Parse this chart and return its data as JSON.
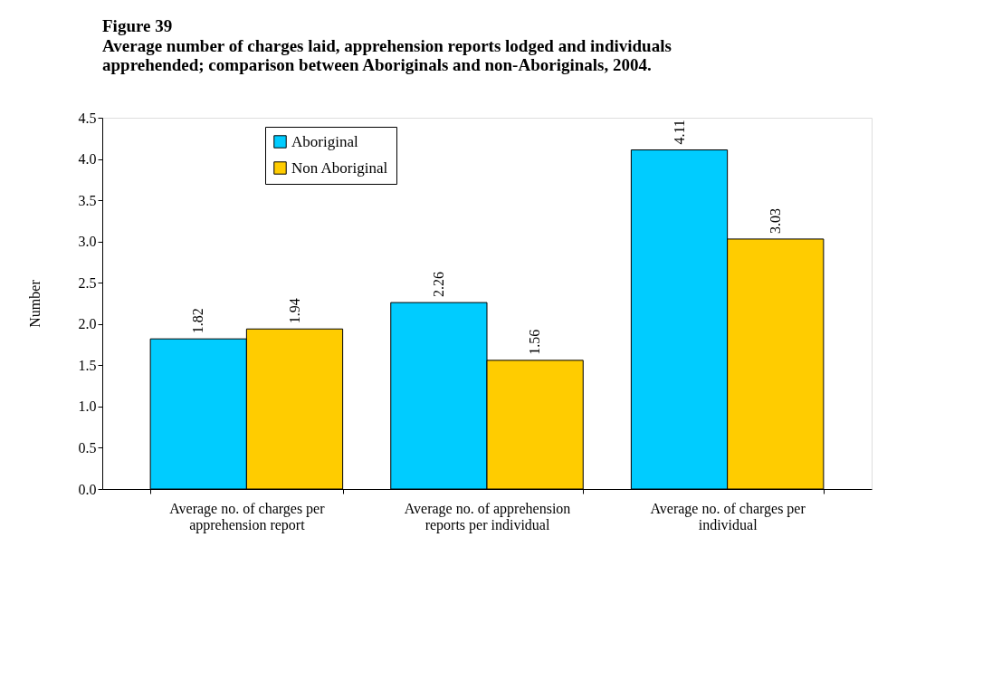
{
  "chart_data": {
    "type": "bar",
    "title": "Figure 39",
    "subtitle": "Average number of charges laid, apprehension reports lodged and individuals apprehended; comparison between Aboriginals and non-Aboriginals, 2004.",
    "ylabel": "Number",
    "categories": [
      "Average no. of charges per apprehension report",
      "Average no. of apprehension reports per individual",
      "Average no. of charges per individual"
    ],
    "series": [
      {
        "name": "Aboriginal",
        "color": "#00ccff",
        "values": [
          1.82,
          2.26,
          4.11
        ]
      },
      {
        "name": "Non Aboriginal",
        "color": "#ffcc00",
        "values": [
          1.94,
          1.56,
          3.03
        ]
      }
    ],
    "ylim": [
      0,
      4.5
    ],
    "yticks": [
      {
        "value": 0,
        "label": "0.0"
      },
      {
        "value": 0.5,
        "label": "0.5"
      },
      {
        "value": 1,
        "label": "1.0"
      },
      {
        "value": 1.5,
        "label": "1.5"
      },
      {
        "value": 2,
        "label": "2.0"
      },
      {
        "value": 2.5,
        "label": "2.5"
      },
      {
        "value": 3,
        "label": "3.0"
      },
      {
        "value": 3.5,
        "label": "3.5"
      },
      {
        "value": 4,
        "label": "4.0"
      },
      {
        "value": 4.5,
        "label": "4.5"
      }
    ],
    "data_labels": true,
    "legend": "top left",
    "grid": false
  }
}
